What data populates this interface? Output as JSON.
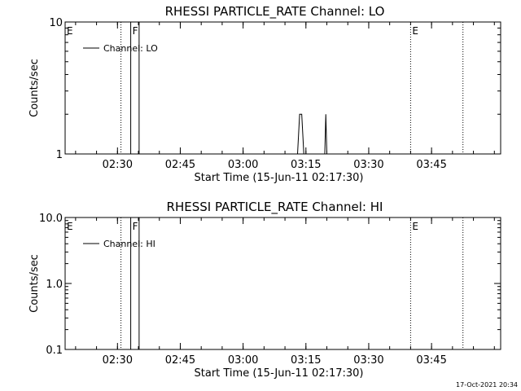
{
  "timestamp": "17-Oct-2021 20:34",
  "chart_data": [
    {
      "type": "line",
      "title": "RHESSI PARTICLE_RATE Channel: LO",
      "xlabel": "Start Time (15-Jun-11 02:17:30)",
      "ylabel": "Counts/sec",
      "yscale": "log",
      "ylim": [
        1,
        10
      ],
      "yticks": [
        1,
        10
      ],
      "ytick_labels": [
        "1",
        "10"
      ],
      "xlim": [
        "02:17:30",
        "04:01:30"
      ],
      "xticks": [
        "02:30",
        "02:45",
        "03:00",
        "03:15",
        "03:30",
        "03:45"
      ],
      "legend": "top-left",
      "series": [
        {
          "name": "Channel: LO",
          "color": "#000000",
          "points": [
            [
              "02:33:10",
              1
            ],
            [
              "02:33:10",
              10
            ],
            [
              "02:35:10",
              10
            ],
            [
              "02:35:10",
              1
            ],
            [
              "03:13:00",
              1
            ],
            [
              "03:13:30",
              2
            ],
            [
              "03:14:00",
              2
            ],
            [
              "03:14:30",
              1
            ],
            [
              "03:19:30",
              1
            ],
            [
              "03:19:45",
              2
            ],
            [
              "03:20:00",
              1
            ]
          ]
        }
      ],
      "event_markers": [
        {
          "label": "E",
          "time": "02:17:30",
          "style": "dotted-none"
        },
        {
          "label": "",
          "time": "02:30:50",
          "style": "dotted"
        },
        {
          "label": "F",
          "time": "02:33:10",
          "style": "solid"
        },
        {
          "label": "E",
          "time": "03:40:00",
          "style": "dotted"
        },
        {
          "label": "",
          "time": "03:52:30",
          "style": "dotted"
        }
      ]
    },
    {
      "type": "line",
      "title": "RHESSI PARTICLE_RATE Channel: HI",
      "xlabel": "Start Time (15-Jun-11 02:17:30)",
      "ylabel": "Counts/sec",
      "yscale": "log",
      "ylim": [
        0.1,
        10
      ],
      "yticks": [
        0.1,
        1,
        10
      ],
      "ytick_labels": [
        "0.1",
        "1.0",
        "10.0"
      ],
      "xlim": [
        "02:17:30",
        "04:01:30"
      ],
      "xticks": [
        "02:30",
        "02:45",
        "03:00",
        "03:15",
        "03:30",
        "03:45"
      ],
      "legend": "top-left",
      "series": [
        {
          "name": "Channel: HI",
          "color": "#000000",
          "points": [
            [
              "02:33:10",
              0.1
            ],
            [
              "02:33:10",
              10
            ],
            [
              "02:35:10",
              10
            ],
            [
              "02:35:10",
              0.1
            ]
          ]
        }
      ],
      "event_markers": [
        {
          "label": "E",
          "time": "02:17:30",
          "style": "dotted-none"
        },
        {
          "label": "",
          "time": "02:30:50",
          "style": "dotted"
        },
        {
          "label": "F",
          "time": "02:33:10",
          "style": "solid"
        },
        {
          "label": "E",
          "time": "03:40:00",
          "style": "dotted"
        },
        {
          "label": "",
          "time": "03:52:30",
          "style": "dotted"
        }
      ]
    }
  ]
}
